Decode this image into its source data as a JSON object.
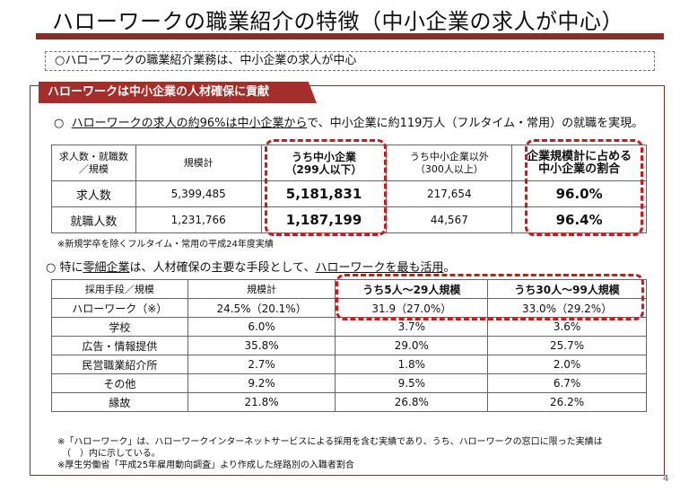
{
  "title": "ハローワークの職業紹介の特徴（中小企業の求人が中心）",
  "summary": "○ハローワークの職業紹介業務は、中小企業の求人が中心",
  "banner": "ハローワークは中小企業の人材確保に貢献",
  "line1": {
    "bullet": "○",
    "underlined": "ハローワークの求人の約96%は中小企業から",
    "rest": "で、中小企業に約119万人（フルタイム・常用）の就職を実現。"
  },
  "table1": {
    "headers": [
      "求人数・就職数\n／規模",
      "規模計",
      "うち中小企業\n（299人以下）",
      "うち中小企業以外\n（300人以上）",
      "企業規模計に占める\n中小企業の割合"
    ],
    "rows": [
      {
        "label": "求人数",
        "total": "5,399,485",
        "sme": "5,181,831",
        "large": "217,654",
        "share": "96.0%"
      },
      {
        "label": "就職人数",
        "total": "1,231,766",
        "sme": "1,187,199",
        "large": "44,567",
        "share": "96.4%"
      }
    ]
  },
  "note1": "※新規学卒を除くフルタイム・常用の平成24年度実績",
  "line2": {
    "bullet": "○",
    "pre": " 特に",
    "u1": "零細企業",
    "mid": "は、人材確保の主要な手段として、",
    "u2": "ハローワークを最も活用",
    "end": "。"
  },
  "table2": {
    "headers": [
      "採用手段／規模",
      "規模計",
      "うち5人～29人規模",
      "うち30人～99人規模"
    ],
    "rows": [
      {
        "label": "ハローワーク（※）",
        "total": "24.5%（20.1%）",
        "small": "31.9（27.0%）",
        "mid": "33.0%（29.2%）"
      },
      {
        "label": "学校",
        "total": "6.0%",
        "small": "3.7%",
        "mid": "3.6%"
      },
      {
        "label": "広告・情報提供",
        "total": "35.8%",
        "small": "29.0%",
        "mid": "25.7%"
      },
      {
        "label": "民営職業紹介所",
        "total": "2.7%",
        "small": "1.8%",
        "mid": "2.0%"
      },
      {
        "label": "その他",
        "total": "9.2%",
        "small": "9.5%",
        "mid": "6.7%"
      },
      {
        "label": "縁故",
        "total": "21.8%",
        "small": "26.8%",
        "mid": "26.2%"
      }
    ]
  },
  "note2": [
    "※「ハローワーク」は、ハローワークインターネットサービスによる採用を含む実績であり、うち、ハローワークの窓口に限った実績は",
    "　（　）内に示している。",
    "※厚生労働省「平成25年雇用動向調査」より作成した経路別の入職者割合"
  ],
  "page_number": "4",
  "colors": {
    "accent": "#8b2e2a",
    "banner": "#a42f2a",
    "highlight": "#d01818"
  }
}
